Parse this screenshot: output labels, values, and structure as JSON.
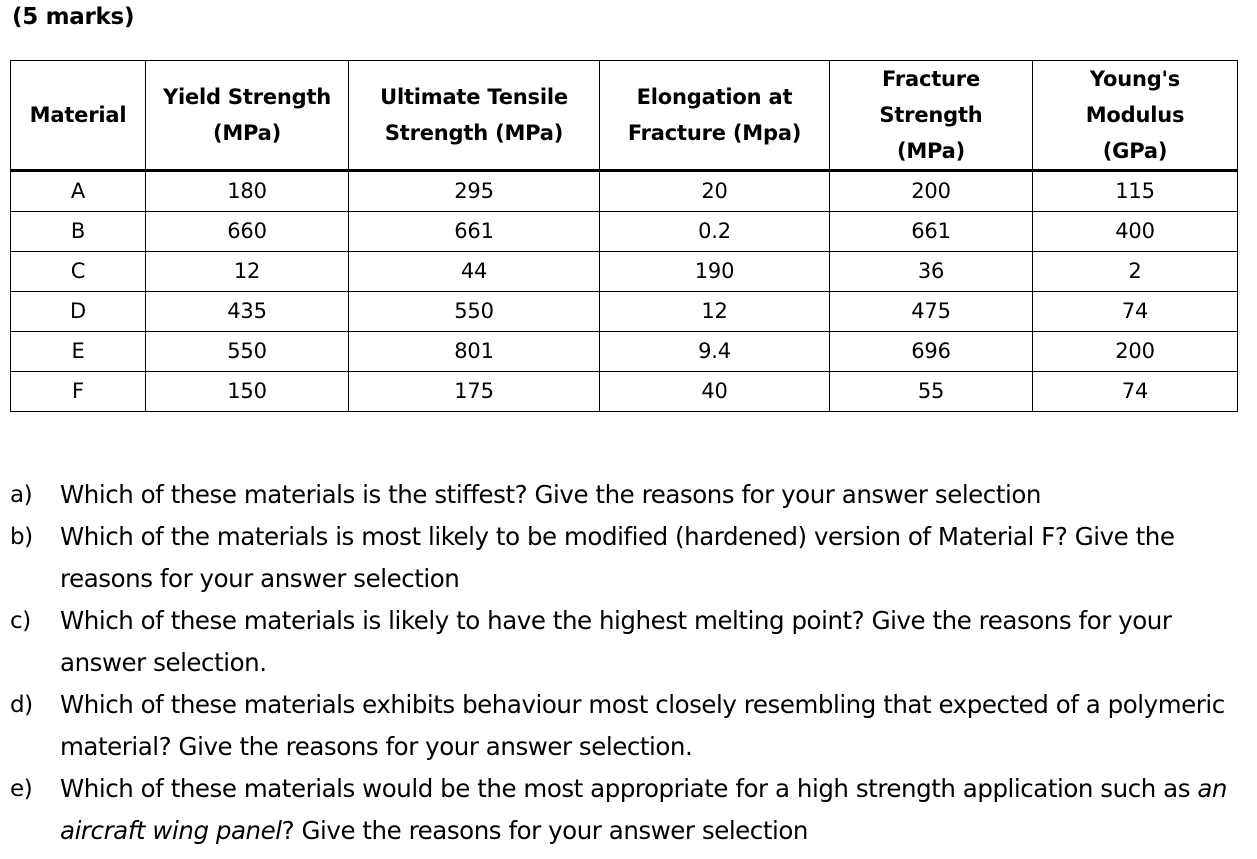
{
  "marks": "(5 marks)",
  "table": {
    "headers": [
      [
        "Material"
      ],
      [
        "Yield Strength",
        "(MPa)"
      ],
      [
        "Ultimate Tensile",
        "Strength (MPa)"
      ],
      [
        "Elongation at",
        "Fracture (Mpa)"
      ],
      [
        "Fracture",
        "Strength",
        "(MPa)"
      ],
      [
        "Young's",
        "Modulus",
        "(GPa)"
      ]
    ],
    "rows": [
      [
        "A",
        "180",
        "295",
        "20",
        "200",
        "115"
      ],
      [
        "B",
        "660",
        "661",
        "0.2",
        "661",
        "400"
      ],
      [
        "C",
        "12",
        "44",
        "190",
        "36",
        "2"
      ],
      [
        "D",
        "435",
        "550",
        "12",
        "475",
        "74"
      ],
      [
        "E",
        "550",
        "801",
        "9.4",
        "696",
        "200"
      ],
      [
        "F",
        "150",
        "175",
        "40",
        "55",
        "74"
      ]
    ]
  },
  "questions": [
    {
      "label": "a)",
      "text": "Which of these materials is the stiffest? Give the reasons for your answer selection"
    },
    {
      "label": "b)",
      "text": "Which of the materials is most likely to be modified (hardened) version of Material F? Give the reasons for your answer selection"
    },
    {
      "label": "c)",
      "text": "Which of these materials is likely to have the highest melting point? Give the reasons for your answer selection."
    },
    {
      "label": "d)",
      "text": "Which of these materials exhibits behaviour most closely resembling that expected of a polymeric material? Give the reasons for your answer selection."
    },
    {
      "label": "e)",
      "text_before": "Which of these materials would be the most appropriate for a high strength application such as ",
      "text_italic": "an aircraft wing panel",
      "text_after": "? Give the reasons for your answer selection"
    }
  ]
}
